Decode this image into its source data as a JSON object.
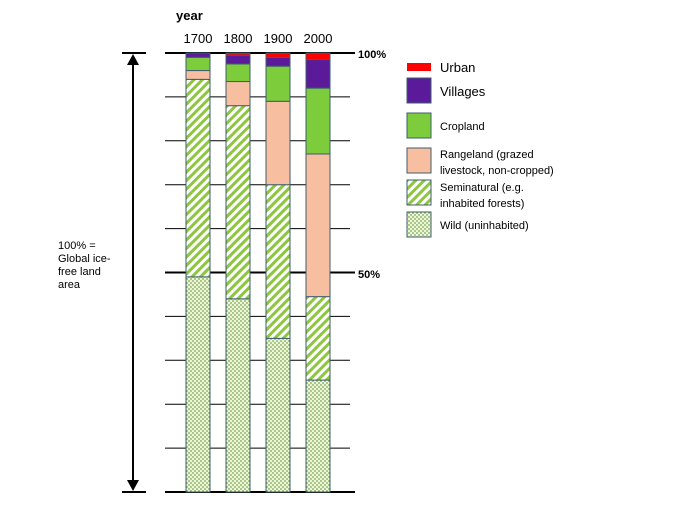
{
  "chart_data": {
    "type": "stacked-bar",
    "xlabel": "year",
    "categories": [
      "1700",
      "1800",
      "1900",
      "2000"
    ],
    "ylim": [
      0,
      100
    ],
    "unit": "%",
    "y_tick_labels": [
      "100%",
      "50%"
    ],
    "grid": true,
    "side_annotation": "100% = Global ice-free land area",
    "legend_position": "right",
    "series": [
      {
        "name": "Wild (uninhabited)",
        "key": "wild",
        "color": "#8dc63f",
        "pattern": "dots",
        "values": [
          49,
          44,
          35,
          25.5
        ]
      },
      {
        "name": "Seminatural (e.g. inhabited forests)",
        "key": "semi",
        "color": "#8dc63f",
        "pattern": "stripes",
        "values": [
          45,
          44,
          35,
          19
        ]
      },
      {
        "name": "Rangeland (grazed livestock, non-cropped)",
        "key": "range",
        "color": "#f7bfa0",
        "pattern": "solid",
        "values": [
          2,
          5.5,
          19,
          32.5
        ]
      },
      {
        "name": "Cropland",
        "key": "crop",
        "color": "#7ccc3c",
        "pattern": "solid",
        "values": [
          3,
          4,
          8,
          15
        ]
      },
      {
        "name": "Villages",
        "key": "villages",
        "color": "#5b1a9a",
        "pattern": "solid",
        "values": [
          1,
          2,
          2,
          6.5
        ]
      },
      {
        "name": "Urban",
        "key": "urban",
        "color": "#ff0000",
        "pattern": "solid",
        "values": [
          0,
          0.5,
          1,
          1.5
        ]
      }
    ],
    "legend": {
      "urban": "Urban",
      "villages": "Villages",
      "crop": "Cropland",
      "range_1": "Rangeland (grazed",
      "range_2": "livestock, non-cropped)",
      "semi_1": "Seminatural (e.g.",
      "semi_2": "inhabited forests)",
      "wild": "Wild (uninhabited)"
    },
    "side_lines": [
      "100% =",
      "Global ice-",
      "free land",
      "area"
    ]
  }
}
